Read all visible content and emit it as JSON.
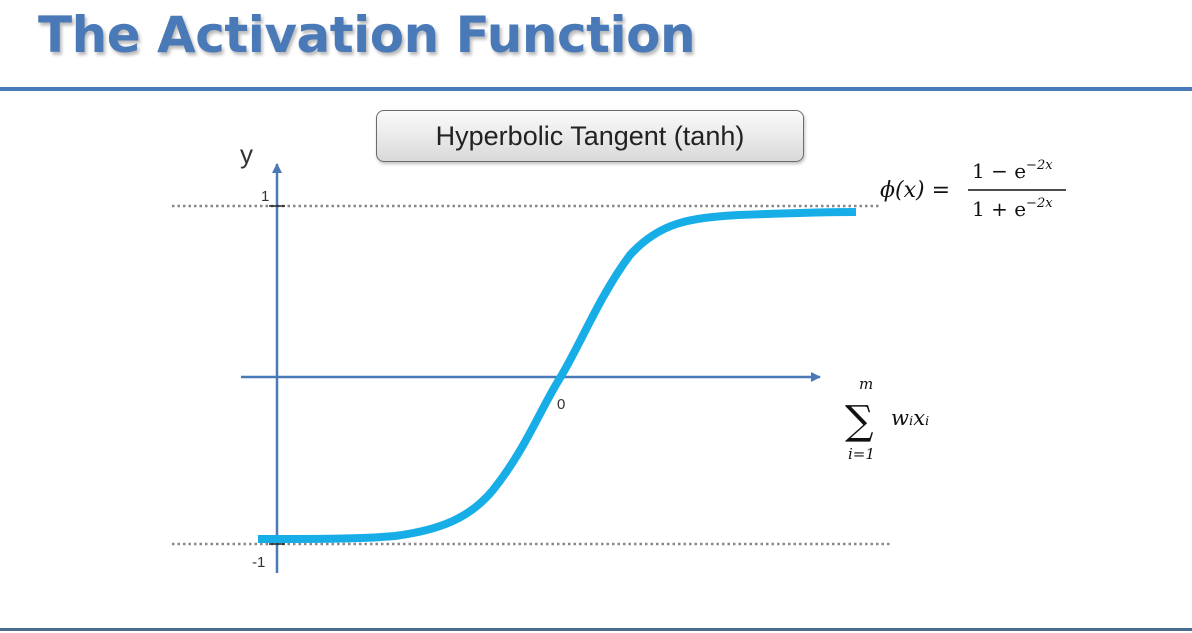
{
  "slide": {
    "title": "The Activation Function"
  },
  "function_box": {
    "label": "Hyperbolic Tangent (tanh)"
  },
  "formula": {
    "lhs": "ϕ(x) =",
    "numerator_lead": "1 − e",
    "numerator_exp": "−2x",
    "denominator_lead": "1 + e",
    "denominator_exp": "−2x"
  },
  "axes": {
    "y_label": "y",
    "y_tick_top": "1",
    "y_tick_bottom": "-1",
    "x_tick_origin": "0",
    "x_label_sum_upper": "m",
    "x_label_sum_symbol": "∑",
    "x_label_sum_lower": "i=1",
    "x_label_term": "wᵢxᵢ"
  },
  "colors": {
    "title": "#4a79b8",
    "rule": "#4a79b8",
    "axis": "#4a79b8",
    "curve": "#17aee8",
    "asymptote": "#888888"
  }
}
